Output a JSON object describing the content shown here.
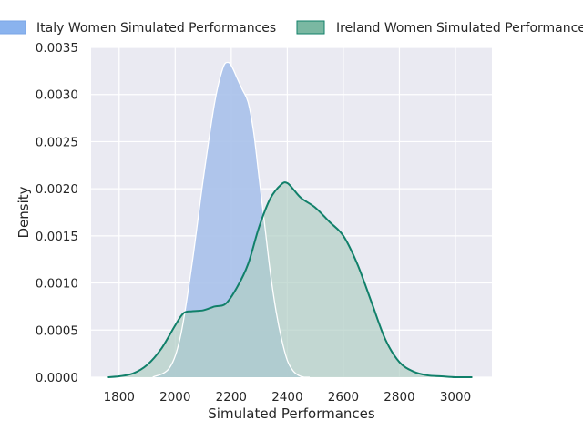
{
  "chart_data": {
    "type": "area",
    "title": "",
    "xlabel": "Simulated Performances",
    "ylabel": "Density",
    "xlim": [
      1700,
      3130
    ],
    "ylim": [
      0,
      0.0035
    ],
    "xticks": [
      1800,
      2000,
      2200,
      2400,
      2600,
      2800,
      3000
    ],
    "yticks": [
      "0.0000",
      "0.0005",
      "0.0010",
      "0.0015",
      "0.0020",
      "0.0025",
      "0.0030",
      "0.0035"
    ],
    "grid": true,
    "legend_position": "top",
    "series": [
      {
        "name": "Italy Women Simulated Performances",
        "fill": "#a9c1ea",
        "line": "#ffffff",
        "legend_swatch": "#8ab3ee",
        "x": [
          1920,
          1980,
          2020,
          2060,
          2100,
          2140,
          2170,
          2190,
          2205,
          2220,
          2240,
          2260,
          2280,
          2300,
          2320,
          2340,
          2360,
          2380,
          2400,
          2420,
          2440,
          2460,
          2480
        ],
        "y": [
          0,
          0.0001,
          0.00045,
          0.0012,
          0.0021,
          0.0029,
          0.00328,
          0.00334,
          0.00328,
          0.00318,
          0.00305,
          0.00292,
          0.0026,
          0.0021,
          0.0016,
          0.0011,
          0.0007,
          0.0004,
          0.00018,
          7e-05,
          2e-05,
          0,
          0
        ]
      },
      {
        "name": "Ireland Women Simulated Performances",
        "fill": "#b0cfc4",
        "line": "#11806a",
        "legend_swatch": "#7ab8a2",
        "x": [
          1760,
          1800,
          1850,
          1900,
          1950,
          2000,
          2030,
          2060,
          2100,
          2140,
          2180,
          2220,
          2260,
          2300,
          2340,
          2380,
          2400,
          2420,
          2450,
          2500,
          2550,
          2600,
          2650,
          2700,
          2750,
          2800,
          2850,
          2900,
          2950,
          3000,
          3060
        ],
        "y": [
          0,
          1e-05,
          4e-05,
          0.00013,
          0.0003,
          0.00055,
          0.00068,
          0.0007,
          0.00071,
          0.00075,
          0.00078,
          0.00095,
          0.0012,
          0.0016,
          0.0019,
          0.00205,
          0.00206,
          0.002,
          0.0019,
          0.0018,
          0.00165,
          0.0015,
          0.0012,
          0.0008,
          0.0004,
          0.00016,
          6e-05,
          2e-05,
          1e-05,
          0,
          0
        ]
      }
    ]
  }
}
